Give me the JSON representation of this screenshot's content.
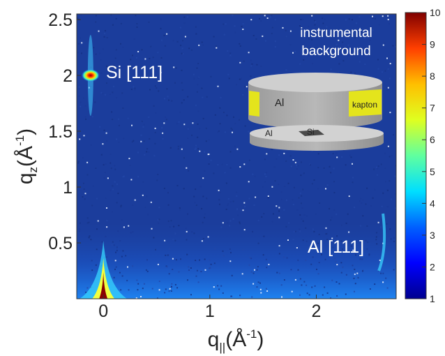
{
  "chart_data": {
    "type": "heatmap",
    "xlabel": "q",
    "xlabel_sub": "||",
    "xlabel_unit_pre": "(Å",
    "xlabel_unit_sup": "-1",
    "xlabel_unit_post": ")",
    "ylabel": "q",
    "ylabel_sub": "z",
    "ylabel_unit_pre": "(Å",
    "ylabel_unit_sup": "-1",
    "ylabel_unit_post": ")",
    "xlim": [
      -0.25,
      2.75
    ],
    "ylim": [
      0.0,
      2.55
    ],
    "x_ticks": [
      {
        "v": 0,
        "label": "0"
      },
      {
        "v": 1,
        "label": "1"
      },
      {
        "v": 2,
        "label": "2"
      }
    ],
    "y_ticks": [
      {
        "v": 0.5,
        "label": "0.5"
      },
      {
        "v": 1.0,
        "label": "1"
      },
      {
        "v": 1.5,
        "label": "1.5"
      },
      {
        "v": 2.0,
        "label": "2"
      },
      {
        "v": 2.5,
        "label": "2.5"
      }
    ],
    "colorbar": {
      "range": [
        1,
        10
      ],
      "ticks": [
        "1",
        "2",
        "3",
        "4",
        "5",
        "6",
        "7",
        "8",
        "9",
        "10"
      ],
      "colormap": "jet"
    },
    "background_level": 1.6,
    "features": [
      {
        "name": "Si [111]",
        "q_par": -0.12,
        "q_z": 2.0,
        "peak": 10
      },
      {
        "name": "Al [111]",
        "q_par": 2.6,
        "q_z": 0.45,
        "peak": 3.5
      },
      {
        "name": "specular",
        "q_par": 0.0,
        "q_z": 0.05,
        "peak": 10
      }
    ],
    "annotations": {
      "si": "Si [111]",
      "al": "Al [111]",
      "bg_line1": "instrumental",
      "bg_line2": "background"
    },
    "inset": {
      "top_disk_label": "Al",
      "window_label": "kapton",
      "bottom_disk_label_al": "Al",
      "bottom_disk_label_si": "Si"
    }
  }
}
